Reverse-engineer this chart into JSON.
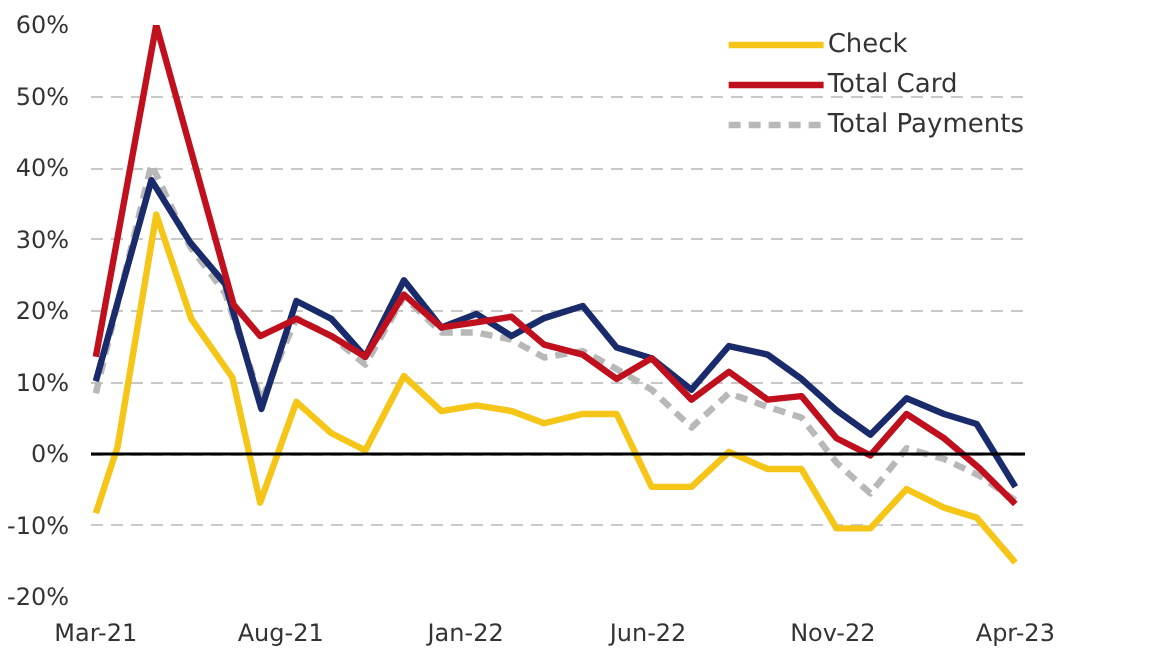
{
  "chart_data": {
    "type": "line",
    "xlim": [
      "2021-02-25",
      "2023-04-09"
    ],
    "xticks": [
      {
        "value": "2021-03",
        "label": "Mar-21"
      },
      {
        "value": "2021-08",
        "label": "Aug-21"
      },
      {
        "value": "2022-01",
        "label": "Jan-22"
      },
      {
        "value": "2022-06",
        "label": "Jun-22"
      },
      {
        "value": "2022-11",
        "label": "Nov-22"
      },
      {
        "value": "2023-04",
        "label": "Apr-23"
      }
    ],
    "ylim": [
      -20,
      60
    ],
    "yticks": [
      {
        "value": -20,
        "label": "-20%"
      },
      {
        "value": -10,
        "label": "-10%"
      },
      {
        "value": 0,
        "label": "0%"
      },
      {
        "value": 10,
        "label": "10%"
      },
      {
        "value": 20,
        "label": "20%"
      },
      {
        "value": 30,
        "label": "30%"
      },
      {
        "value": 40,
        "label": "40%"
      },
      {
        "value": 50,
        "label": "50%"
      },
      {
        "value": 60,
        "label": "60%"
      }
    ],
    "grid": "y",
    "legend": "top right",
    "ref_lines": [
      {
        "axis": "y",
        "value": 0,
        "color": "#000000",
        "line_style": "solid"
      }
    ],
    "series": [
      {
        "name": "Check",
        "color": "#f5c518",
        "line_style": "solid",
        "x": [
          "2021-03-01",
          "2021-03-19",
          "2021-04-20",
          "2021-05-19",
          "2021-06-22",
          "2021-07-15",
          "2021-08-14",
          "2021-09-12",
          "2021-10-10",
          "2021-11-11",
          "2021-12-12",
          "2022-01-10",
          "2022-02-08",
          "2022-03-07",
          "2022-04-08",
          "2022-05-06",
          "2022-06-04",
          "2022-07-07",
          "2022-08-07",
          "2022-09-08",
          "2022-10-06",
          "2022-11-04",
          "2022-12-02",
          "2023-01-01",
          "2023-02-01",
          "2023-02-28",
          "2023-04-01"
        ],
        "values": [
          -8.3,
          1,
          33.5,
          18.9,
          10.7,
          -6.8,
          7.3,
          2.9,
          0.5,
          10.9,
          6.0,
          6.8,
          6.0,
          4.3,
          5.6,
          5.6,
          -4.6,
          -4.6,
          0.3,
          -2.1,
          -2.1,
          -10.4,
          -10.4,
          -4.9,
          -7.5,
          -8.9,
          -15.2
        ]
      },
      {
        "name": "Total Payments",
        "color": "#b8b8b8",
        "line_style": "dashed",
        "x": [
          "2021-03-01",
          "2021-04-16",
          "2021-05-18",
          "2021-06-16",
          "2021-07-16",
          "2021-08-14",
          "2021-09-12",
          "2021-10-10",
          "2021-11-11",
          "2021-12-12",
          "2022-01-10",
          "2022-02-08",
          "2022-03-07",
          "2022-04-08",
          "2022-05-06",
          "2022-06-04",
          "2022-07-07",
          "2022-08-07",
          "2022-09-08",
          "2022-10-06",
          "2022-11-04",
          "2022-12-02",
          "2023-01-01",
          "2023-02-01",
          "2023-03-03",
          "2023-04-01"
        ],
        "values": [
          8.5,
          40.5,
          29,
          22.5,
          7.5,
          19,
          16.5,
          12.5,
          22,
          17,
          17,
          16,
          13.5,
          14.4,
          11.9,
          9.0,
          3.7,
          8.5,
          6.6,
          5.1,
          -1.2,
          -5.5,
          0.8,
          -0.7,
          -3.1,
          -6.5
        ]
      },
      {
        "color": "#1a2b6b",
        "line_style": "solid",
        "x": [
          "2021-03-01",
          "2021-04-16",
          "2021-05-18",
          "2021-06-16",
          "2021-07-16",
          "2021-08-14",
          "2021-09-12",
          "2021-10-10",
          "2021-11-11",
          "2021-12-12",
          "2022-01-10",
          "2022-02-08",
          "2022-03-07",
          "2022-04-08",
          "2022-05-06",
          "2022-06-04",
          "2022-07-07",
          "2022-08-07",
          "2022-09-08",
          "2022-10-06",
          "2022-11-04",
          "2022-12-02",
          "2023-01-01",
          "2023-02-01",
          "2023-02-28",
          "2023-04-01"
        ],
        "values": [
          10.2,
          38.3,
          29.6,
          23.8,
          6.3,
          21.4,
          18.9,
          13.6,
          24.3,
          17.7,
          19.6,
          16.5,
          19.0,
          20.7,
          14.9,
          13.4,
          9.0,
          15.1,
          13.9,
          10.5,
          6.1,
          2.7,
          7.8,
          5.6,
          4.2,
          -4.6
        ]
      },
      {
        "name": "Total Card",
        "color": "#c0101e",
        "line_style": "solid",
        "x": [
          "2021-03-01",
          "2021-04-20",
          "2021-06-23",
          "2021-07-15",
          "2021-08-14",
          "2021-09-12",
          "2021-10-10",
          "2021-11-11",
          "2021-12-12",
          "2022-01-10",
          "2022-02-08",
          "2022-03-07",
          "2022-04-08",
          "2022-05-06",
          "2022-06-04",
          "2022-07-07",
          "2022-08-07",
          "2022-09-08",
          "2022-10-06",
          "2022-11-04",
          "2022-12-02",
          "2023-01-01",
          "2023-02-01",
          "2023-03-03",
          "2023-04-01"
        ],
        "values": [
          13.6,
          60,
          20.9,
          16.5,
          18.9,
          16.5,
          13.6,
          22.3,
          17.7,
          18.4,
          19.2,
          15.3,
          13.9,
          10.5,
          13.4,
          7.6,
          11.5,
          7.6,
          8.1,
          2.2,
          -0.2,
          5.6,
          2.2,
          -2.1,
          -7.0
        ]
      }
    ]
  }
}
